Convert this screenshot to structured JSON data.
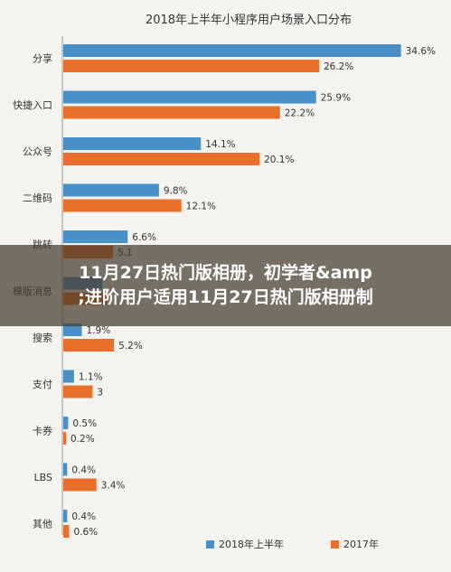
{
  "chart_data": {
    "type": "bar",
    "orientation": "horizontal",
    "title": "2018年上半年小程序用户场景入口分布",
    "categories": [
      "分享",
      "快捷入口",
      "公众号",
      "二维码",
      "跳转",
      "模版消息",
      "搜索",
      "支付",
      "卡券",
      "LBS",
      "其他"
    ],
    "series": [
      {
        "name": "2018年上半年",
        "color": "#4a90c8",
        "values": [
          34.6,
          25.9,
          14.1,
          9.8,
          6.6,
          4.0,
          1.9,
          1.1,
          0.5,
          0.4,
          0.4
        ],
        "labels": [
          "34.6%",
          "25.9%",
          "14.1%",
          "9.8%",
          "6.6%",
          "",
          "1.9%",
          "1.1%",
          "0.5%",
          "0.4%",
          "0.4%"
        ]
      },
      {
        "name": "2017年",
        "color": "#e8702a",
        "values": [
          26.2,
          22.2,
          20.1,
          12.1,
          5.1,
          4.5,
          5.2,
          3.0,
          0.2,
          3.4,
          0.6
        ],
        "labels": [
          "26.2%",
          "22.2%",
          "20.1%",
          "12.1%",
          "5.1",
          "",
          "5.2%",
          "3",
          "0.2%",
          "3.4%",
          "0.6%"
        ]
      }
    ],
    "legend": "bottom",
    "grid": false
  },
  "overlay": {
    "line1": "11月27日热门版相册，初学者&amp",
    "line2": ";进阶用户适用11月27日热门版相册制"
  }
}
